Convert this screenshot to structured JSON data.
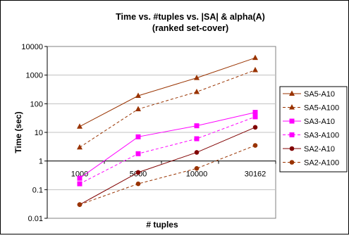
{
  "chart_data": {
    "type": "line",
    "title": "Time vs. #tuples vs. |SA| & alpha(A)",
    "subtitle": "(ranked set-cover)",
    "xlabel": "# tuples",
    "ylabel": "Time (sec)",
    "categories": [
      "1000",
      "5000",
      "10000",
      "30162"
    ],
    "y_scale": "log",
    "ylim": [
      0.01,
      10000
    ],
    "y_ticks": [
      "0.01",
      "0.1",
      "1",
      "10",
      "100",
      "1000",
      "10000"
    ],
    "grid": "horizontal",
    "legend_position": "right",
    "series": [
      {
        "name": "SA5-A10",
        "values": [
          16,
          190,
          800,
          4000
        ],
        "color": "#993300",
        "marker": "triangle",
        "dashed": false
      },
      {
        "name": "SA5-A100",
        "values": [
          3,
          65,
          260,
          1500
        ],
        "color": "#993300",
        "marker": "triangle",
        "dashed": true
      },
      {
        "name": "SA3-A10",
        "values": [
          0.25,
          7,
          17,
          50
        ],
        "color": "#ff00ff",
        "marker": "square",
        "dashed": false
      },
      {
        "name": "SA3-A100",
        "values": [
          0.16,
          1.8,
          6,
          35
        ],
        "color": "#ff00ff",
        "marker": "square",
        "dashed": true
      },
      {
        "name": "SA2-A10",
        "values": [
          0.03,
          0.4,
          2,
          15
        ],
        "color": "#800000",
        "marker": "circle",
        "dashed": false
      },
      {
        "name": "SA2-A100",
        "values": [
          0.03,
          0.16,
          0.55,
          3.5
        ],
        "color": "#993300",
        "marker": "circle",
        "dashed": true
      }
    ]
  }
}
